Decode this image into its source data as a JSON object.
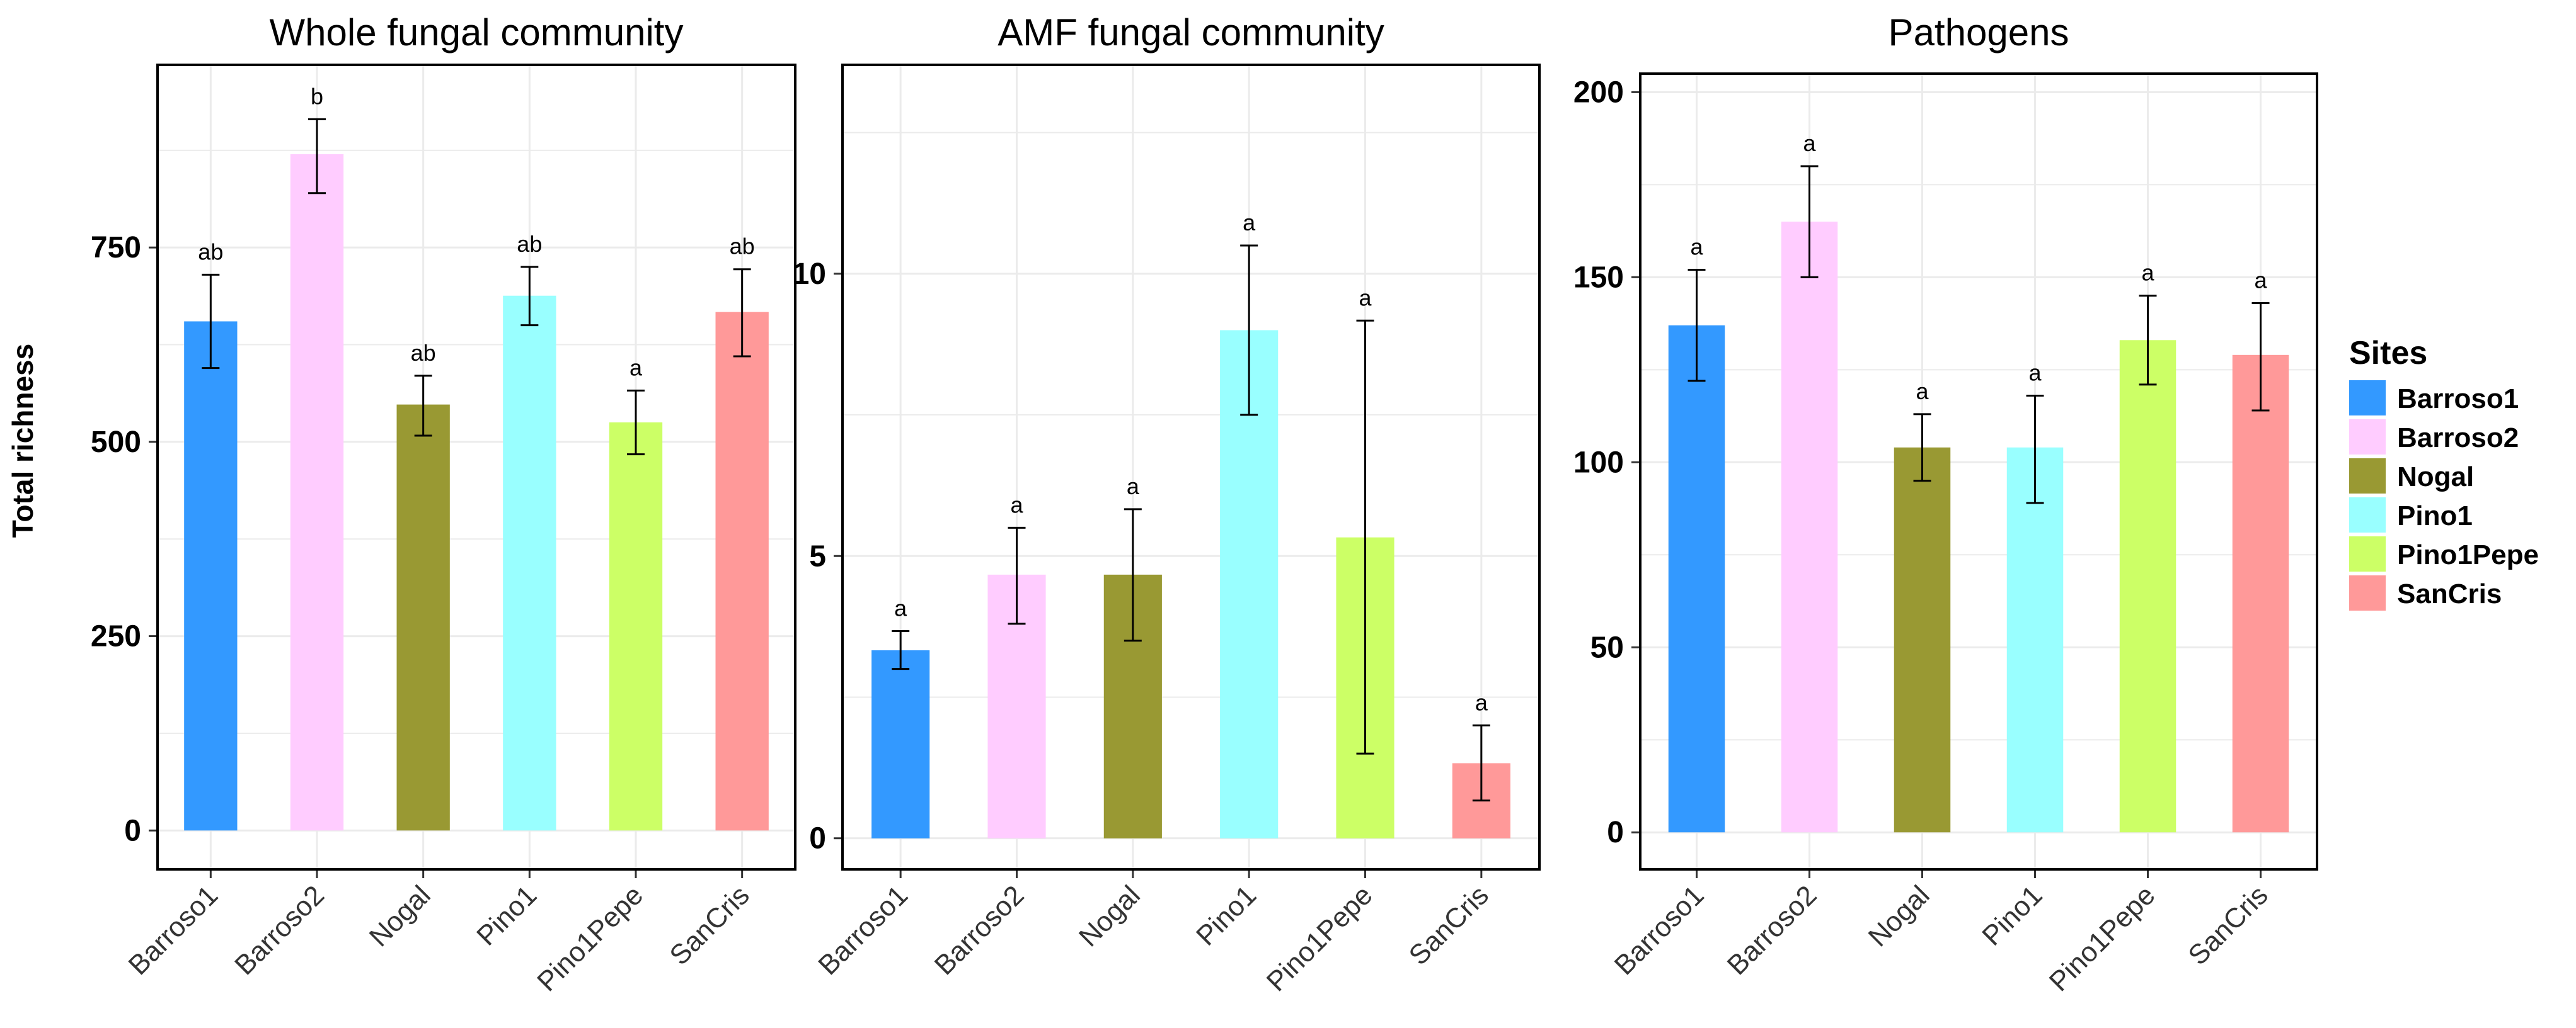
{
  "colors": {
    "Barroso1": "#3399ff",
    "Barroso2": "#ffccff",
    "Nogal": "#999933",
    "Pino1": "#99ffff",
    "Pino1Pepe": "#ccff66",
    "SanCris": "#ff9999",
    "grid": "#ebebeb",
    "axis": "#000000"
  },
  "y_axis_label": "Total richness",
  "legend": {
    "title": "Sites",
    "entries": [
      "Barroso1",
      "Barroso2",
      "Nogal",
      "Pino1",
      "Pino1Pepe",
      "SanCris"
    ]
  },
  "chart_data": [
    {
      "type": "bar",
      "title": "Whole fungal community",
      "categories": [
        "Barroso1",
        "Barroso2",
        "Nogal",
        "Pino1",
        "Pino1Pepe",
        "SanCris"
      ],
      "values": [
        655,
        870,
        548,
        688,
        525,
        667
      ],
      "error_low": [
        595,
        820,
        508,
        650,
        484,
        610
      ],
      "error_high": [
        715,
        915,
        585,
        725,
        566,
        722
      ],
      "letters": [
        "ab",
        "b",
        "ab",
        "ab",
        "a",
        "ab"
      ],
      "yticks": [
        0,
        250,
        500,
        750
      ],
      "ylim": [
        -50,
        985
      ],
      "xlabel": "",
      "ylabel": "Total richness"
    },
    {
      "type": "bar",
      "title": "AMF fungal community",
      "categories": [
        "Barroso1",
        "Barroso2",
        "Nogal",
        "Pino1",
        "Pino1Pepe",
        "SanCris"
      ],
      "values": [
        3.33,
        4.67,
        4.67,
        9.0,
        5.33,
        1.33
      ],
      "error_low": [
        3.0,
        3.8,
        3.5,
        7.5,
        1.5,
        0.67
      ],
      "error_high": [
        3.67,
        5.5,
        5.83,
        10.5,
        9.17,
        2.0
      ],
      "letters": [
        "a",
        "a",
        "a",
        "a",
        "a",
        "a"
      ],
      "yticks": [
        0,
        5,
        10
      ],
      "ylim": [
        -0.55,
        13.7
      ],
      "xlabel": "",
      "ylabel": ""
    },
    {
      "type": "bar",
      "title": "Pathogens",
      "categories": [
        "Barroso1",
        "Barroso2",
        "Nogal",
        "Pino1",
        "Pino1Pepe",
        "SanCris"
      ],
      "values": [
        137,
        165,
        104,
        104,
        133,
        129
      ],
      "error_low": [
        122,
        150,
        95,
        89,
        121,
        114
      ],
      "error_high": [
        152,
        180,
        113,
        118,
        145,
        143
      ],
      "letters": [
        "a",
        "a",
        "a",
        "a",
        "a",
        "a"
      ],
      "yticks": [
        0,
        50,
        100,
        150,
        200
      ],
      "ylim": [
        -10,
        205
      ],
      "xlabel": "",
      "ylabel": ""
    }
  ]
}
